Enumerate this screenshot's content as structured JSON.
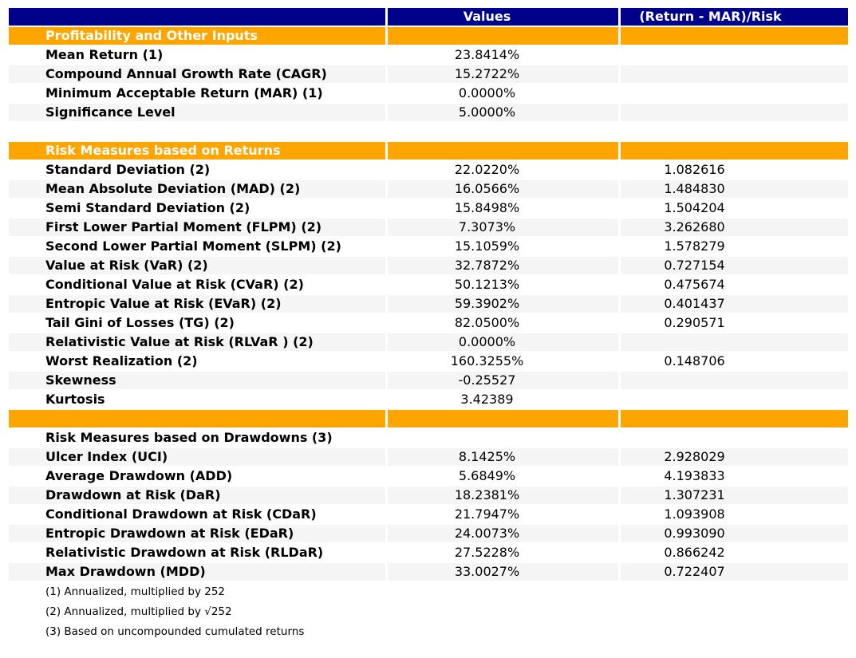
{
  "chart_data": {
    "type": "table",
    "columns": [
      "",
      "Values",
      "(Return - MAR)/Risk"
    ],
    "rows": [
      {
        "type": "section",
        "label": "Profitability and Other Inputs",
        "value": "",
        "ratio": ""
      },
      {
        "type": "data",
        "label": "Mean Return (1)",
        "value": "23.8414%",
        "ratio": ""
      },
      {
        "type": "data",
        "label": "Compound Annual Growth Rate (CAGR)",
        "value": "15.2722%",
        "ratio": ""
      },
      {
        "type": "data",
        "label": "Minimum Acceptable Return (MAR) (1)",
        "value": "0.0000%",
        "ratio": ""
      },
      {
        "type": "data",
        "label": "Significance Level",
        "value": "5.0000%",
        "ratio": ""
      },
      {
        "type": "empty",
        "label": "",
        "value": "",
        "ratio": ""
      },
      {
        "type": "section",
        "label": "Risk Measures based on Returns",
        "value": "",
        "ratio": ""
      },
      {
        "type": "data",
        "label": "Standard Deviation (2)",
        "value": "22.0220%",
        "ratio": "1.082616"
      },
      {
        "type": "data",
        "label": "Mean Absolute Deviation (MAD) (2)",
        "value": "16.0566%",
        "ratio": "1.484830"
      },
      {
        "type": "data",
        "label": "Semi Standard Deviation (2)",
        "value": "15.8498%",
        "ratio": "1.504204"
      },
      {
        "type": "data",
        "label": "First Lower Partial Moment (FLPM) (2)",
        "value": "7.3073%",
        "ratio": "3.262680"
      },
      {
        "type": "data",
        "label": "Second Lower Partial Moment (SLPM) (2)",
        "value": "15.1059%",
        "ratio": "1.578279"
      },
      {
        "type": "data",
        "label": "Value at Risk (VaR) (2)",
        "value": "32.7872%",
        "ratio": "0.727154"
      },
      {
        "type": "data",
        "label": "Conditional Value at Risk (CVaR) (2)",
        "value": "50.1213%",
        "ratio": "0.475674"
      },
      {
        "type": "data",
        "label": "Entropic Value at Risk (EVaR) (2)",
        "value": "59.3902%",
        "ratio": "0.401437"
      },
      {
        "type": "data",
        "label": "Tail Gini of Losses (TG) (2)",
        "value": "82.0500%",
        "ratio": "0.290571"
      },
      {
        "type": "data",
        "label": "Relativistic Value at Risk (RLVaR ) (2)",
        "value": "0.0000%",
        "ratio": ""
      },
      {
        "type": "data",
        "label": "Worst Realization (2)",
        "value": "160.3255%",
        "ratio": "0.148706"
      },
      {
        "type": "data",
        "label": "Skewness",
        "value": "-0.25527",
        "ratio": ""
      },
      {
        "type": "data",
        "label": "Kurtosis",
        "value": "3.42389",
        "ratio": ""
      },
      {
        "type": "section",
        "label": "",
        "value": "",
        "ratio": ""
      },
      {
        "type": "label",
        "label": "Risk Measures based on Drawdowns (3)",
        "value": "",
        "ratio": ""
      },
      {
        "type": "data",
        "label": "Ulcer Index (UCI)",
        "value": "8.1425%",
        "ratio": "2.928029"
      },
      {
        "type": "data",
        "label": "Average Drawdown (ADD)",
        "value": "5.6849%",
        "ratio": "4.193833"
      },
      {
        "type": "data",
        "label": "Drawdown at Risk (DaR)",
        "value": "18.2381%",
        "ratio": "1.307231"
      },
      {
        "type": "data",
        "label": "Conditional Drawdown at Risk (CDaR)",
        "value": "21.7947%",
        "ratio": "1.093908"
      },
      {
        "type": "data",
        "label": "Entropic Drawdown at Risk (EDaR)",
        "value": "24.0073%",
        "ratio": "0.993090"
      },
      {
        "type": "data",
        "label": "Relativistic Drawdown at Risk (RLDaR)",
        "value": "27.5228%",
        "ratio": "0.866242"
      },
      {
        "type": "data",
        "label": "Max Drawdown (MDD)",
        "value": "33.0027%",
        "ratio": "0.722407"
      }
    ],
    "footnotes": [
      "(1) Annualized, multiplied by 252",
      "(2) Annualized, multiplied by √252",
      "(3) Based on uncompounded cumulated returns"
    ]
  },
  "colors": {
    "header_bg": "#00008B",
    "section_bg": "#FFA500",
    "stripe": "#F5F5F5",
    "header_text": "#FFFFFF",
    "body_text": "#000000"
  }
}
